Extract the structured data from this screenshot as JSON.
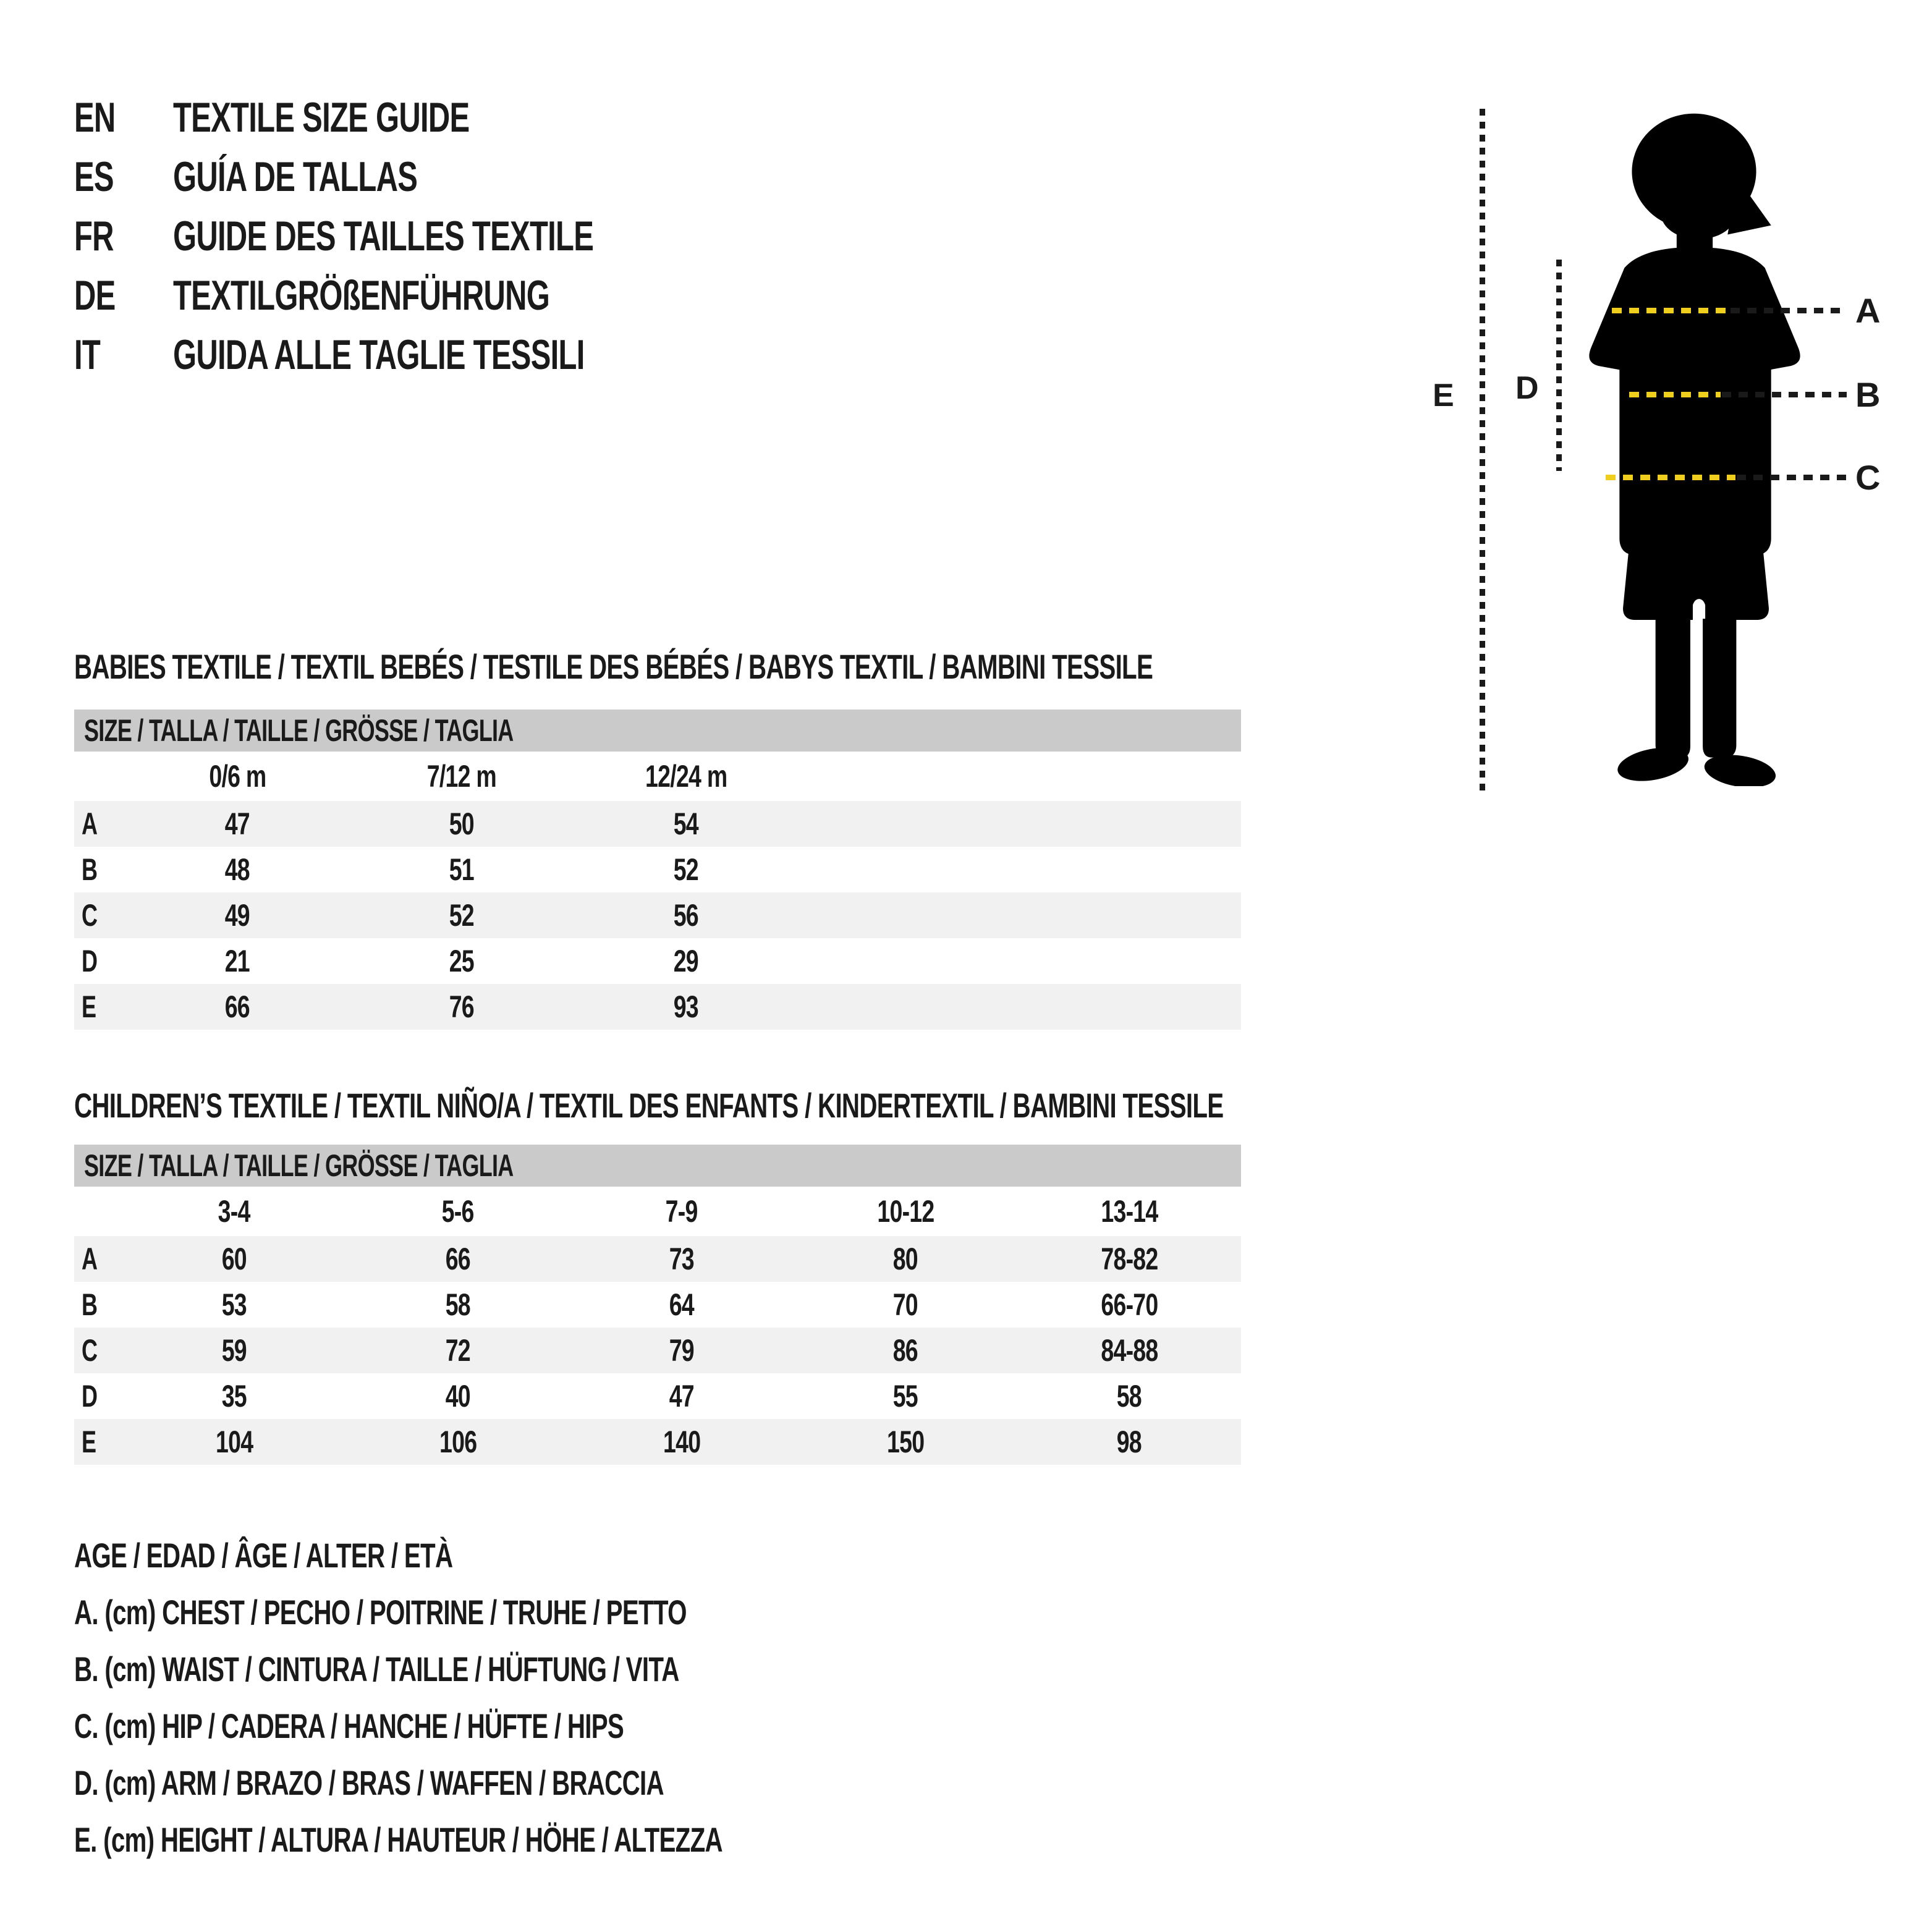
{
  "languages": [
    {
      "code": "EN",
      "label": "TEXTILE SIZE GUIDE"
    },
    {
      "code": "ES",
      "label": "GUÍA DE TALLAS"
    },
    {
      "code": "FR",
      "label": "GUIDE DES TAILLES TEXTILE"
    },
    {
      "code": "DE",
      "label": "TEXTILGRÖßENFÜHRUNG"
    },
    {
      "code": "IT",
      "label": "GUIDA ALLE TAGLIE TESSILI"
    }
  ],
  "figure": {
    "chest_label": "A",
    "waist_label": "B",
    "hip_label": "C",
    "arm_label": "D",
    "height_label": "E"
  },
  "sections": [
    {
      "title": "BABIES TEXTILE / TEXTIL BEBÉS / TESTILE DES BÉBÉS / BABYS TEXTIL / BAMBINI TESSILE",
      "size_header": "SIZE / TALLA / TAILLE / GRÖSSE / TAGLIA",
      "columns": [
        "0/6 m",
        "7/12 m",
        "12/24 m"
      ],
      "rows": [
        {
          "label": "A",
          "values": [
            "47",
            "50",
            "54"
          ]
        },
        {
          "label": "B",
          "values": [
            "48",
            "51",
            "52"
          ]
        },
        {
          "label": "C",
          "values": [
            "49",
            "52",
            "56"
          ]
        },
        {
          "label": "D",
          "values": [
            "21",
            "25",
            "29"
          ]
        },
        {
          "label": "E",
          "values": [
            "66",
            "76",
            "93"
          ]
        }
      ]
    },
    {
      "title": "CHILDREN’S TEXTILE / TEXTIL NIÑO/A / TEXTIL DES ENFANTS / KINDERTEXTIL / BAMBINI TESSILE",
      "size_header": "SIZE / TALLA / TAILLE / GRÖSSE / TAGLIA",
      "columns": [
        "3-4",
        "5-6",
        "7-9",
        "10-12",
        "13-14"
      ],
      "rows": [
        {
          "label": "A",
          "values": [
            "60",
            "66",
            "73",
            "80",
            "78-82"
          ]
        },
        {
          "label": "B",
          "values": [
            "53",
            "58",
            "64",
            "70",
            "66-70"
          ]
        },
        {
          "label": "C",
          "values": [
            "59",
            "72",
            "79",
            "86",
            "84-88"
          ]
        },
        {
          "label": "D",
          "values": [
            "35",
            "40",
            "47",
            "55",
            "58"
          ]
        },
        {
          "label": "E",
          "values": [
            "104",
            "106",
            "140",
            "150",
            "98"
          ]
        }
      ]
    }
  ],
  "legend": [
    "AGE / EDAD / ÂGE / ALTER / ETÀ",
    "A. (cm) CHEST / PECHO / POITRINE / TRUHE / PETTO",
    "B. (cm) WAIST / CINTURA / TAILLE / HÜFTUNG / VITA",
    "C. (cm) HIP / CADERA / HANCHE / HÜFTE / HIPS",
    "D. (cm) ARM / BRAZO / BRAS / WAFFEN / BRACCIA",
    "E. (cm) HEIGHT / ALTURA / HAUTEUR / HÖHE / ALTEZZA"
  ],
  "colors": {
    "ink": "#1a1a1a",
    "silhouette": "#000000",
    "accent_yellow": "#f0ce1e",
    "header_gray": "#cacaca",
    "stripe_gray": "#f1f1f1"
  }
}
